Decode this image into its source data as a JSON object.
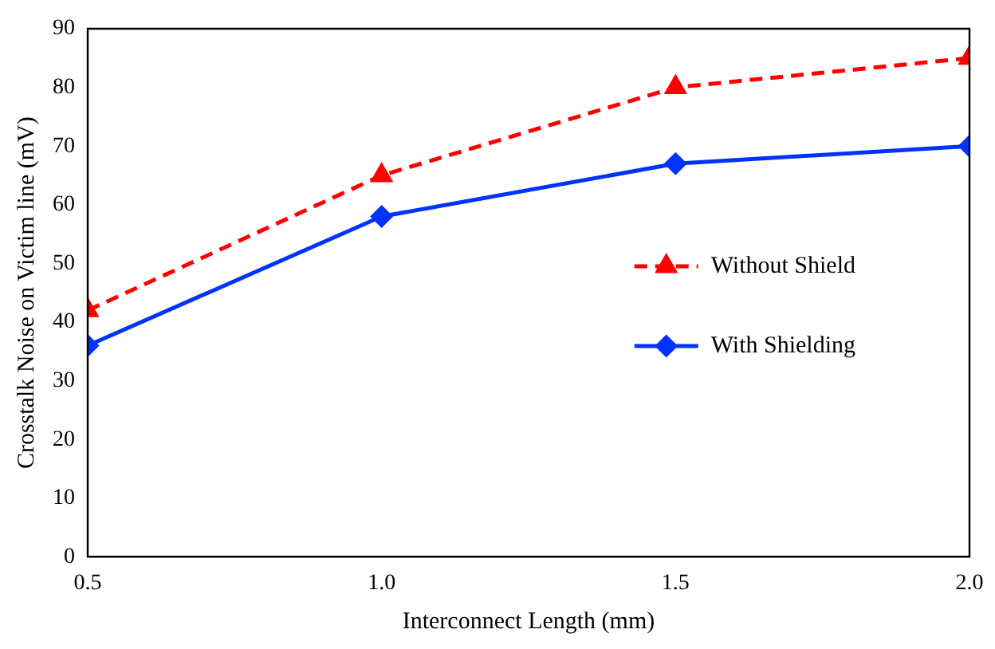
{
  "chart_data": {
    "type": "line",
    "xlabel": "Interconnect Length (mm)",
    "ylabel": "Crosstalk Noise on Victim line (mV)",
    "x": [
      0.5,
      1.0,
      1.5,
      2.0
    ],
    "series": [
      {
        "name": "Without Shield",
        "color": "#ff0000",
        "values": [
          42,
          65,
          80,
          85
        ],
        "marker": "triangle",
        "line_style": "dashed"
      },
      {
        "name": "With Shielding",
        "color": "#0033ff",
        "values": [
          36,
          58,
          67,
          70
        ],
        "marker": "diamond",
        "line_style": "solid"
      }
    ],
    "xlim": [
      0.5,
      2.0
    ],
    "xticks": [
      0.5,
      {
        "value": 1,
        "label": "1.0"
      },
      1.5,
      {
        "value": 2,
        "label": "2.0"
      }
    ],
    "ylim": [
      0,
      90
    ],
    "yticks": [
      0,
      10,
      20,
      30,
      40,
      50,
      60,
      70,
      80,
      90
    ],
    "grid": false,
    "legend": "right"
  }
}
